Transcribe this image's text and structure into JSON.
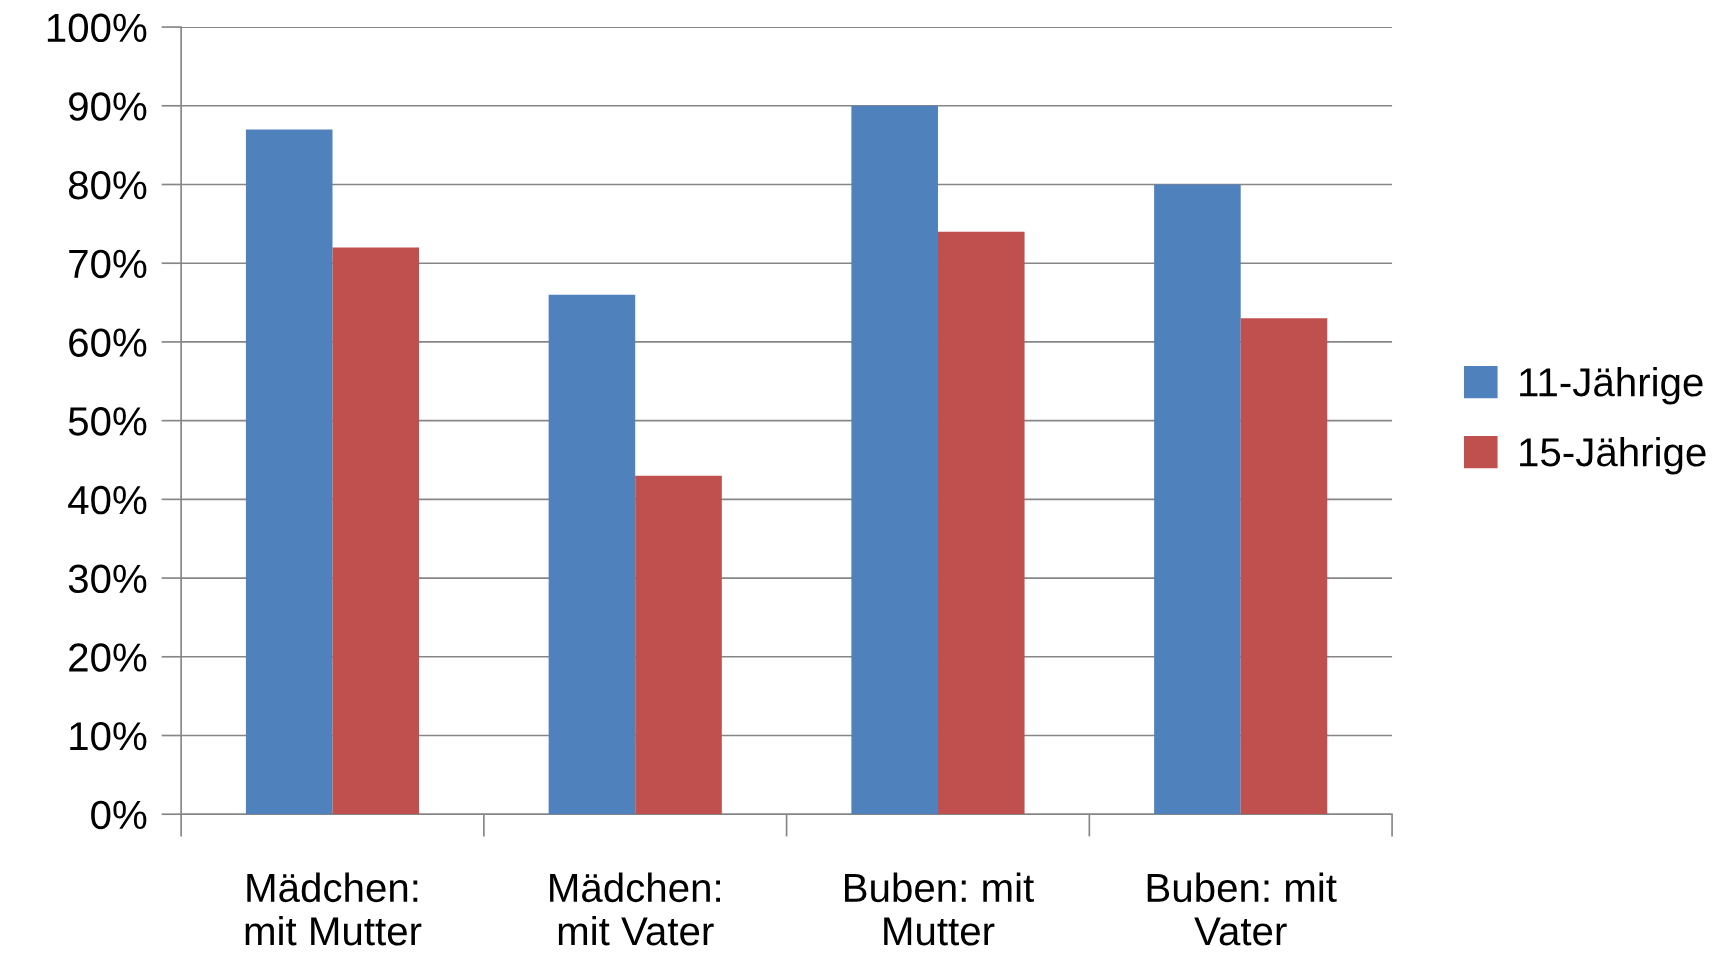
{
  "chart_data": {
    "type": "bar",
    "categories": [
      "Mädchen:\nmit Mutter",
      "Mädchen:\nmit Vater",
      "Buben: mit\nMutter",
      "Buben: mit\nVater"
    ],
    "series": [
      {
        "name": "11-Jährige",
        "color": "#4f81bd",
        "values": [
          87,
          66,
          90,
          80
        ]
      },
      {
        "name": "15-Jährige",
        "color": "#c0504d",
        "values": [
          72,
          43,
          74,
          63
        ]
      }
    ],
    "ylim": [
      0,
      100
    ],
    "yticks": [
      {
        "value": 0,
        "label": "0%"
      },
      {
        "value": 10,
        "label": "10%"
      },
      {
        "value": 20,
        "label": "20%"
      },
      {
        "value": 30,
        "label": "30%"
      },
      {
        "value": 40,
        "label": "40%"
      },
      {
        "value": 50,
        "label": "50%"
      },
      {
        "value": 60,
        "label": "60%"
      },
      {
        "value": 70,
        "label": "70%"
      },
      {
        "value": 80,
        "label": "80%"
      },
      {
        "value": 90,
        "label": "90%"
      },
      {
        "value": 100,
        "label": "100%"
      }
    ],
    "grid": "y",
    "legend": "right"
  }
}
